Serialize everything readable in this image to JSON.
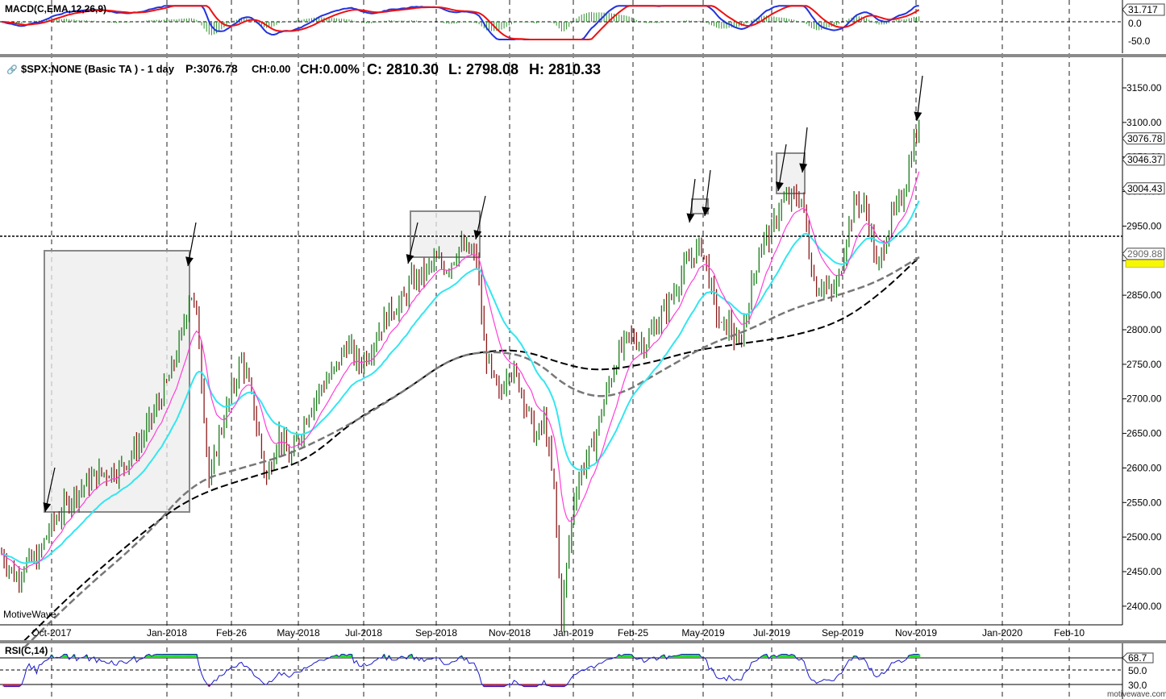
{
  "macd_panel": {
    "label": "MACD(C,EMA,12,26,9)",
    "axis_labels": [
      "31.717",
      "0.0",
      "-50.0"
    ]
  },
  "price_panel": {
    "title": "$SPX:NONE (Basic TA ) - 1 day",
    "readout_p": "P:3076.78",
    "readout_ch": "CH:0.00",
    "readout_chpct": "CH:0.00%",
    "readout_c": "C: 2810.30",
    "readout_l": "L: 2798.08",
    "readout_h": "H: 2810.33",
    "watermark": "MotiveWave"
  },
  "rsi_panel": {
    "label": "RSI(C,14)",
    "axis_labels": [
      "68.7",
      "50.0",
      "30.0"
    ]
  },
  "footer_brand": "motivewave.com",
  "colors": {
    "up": "#1a7a1a",
    "down": "#8b1a1a",
    "ma_fast": "#ff3fd8",
    "ma_mid": "#33e6f0",
    "ma_slow_gray": "#777777",
    "ma_slow_black": "#000000",
    "macd_line": "#2233dd",
    "signal_line": "#ee1111",
    "rsi_line": "#1a1acc"
  },
  "chart_data": {
    "type": "line",
    "title": "$SPX:NONE (Basic TA ) - 1 day",
    "x_tick_labels": [
      "Oct-2017",
      "Jan-2018",
      "Feb-26",
      "May-2018",
      "Jul-2018",
      "Sep-2018",
      "Nov-2018",
      "Jan-2019",
      "Feb-25",
      "May-2019",
      "Jul-2019",
      "Sep-2019",
      "Nov-2019",
      "Jan-2020",
      "Feb-10"
    ],
    "y_tick_labels": [
      "3150.00",
      "3100.00",
      "3050.00",
      "3000.00",
      "2950.00",
      "2900.00",
      "2850.00",
      "2800.00",
      "2750.00",
      "2700.00",
      "2650.00",
      "2600.00",
      "2550.00",
      "2500.00",
      "2450.00",
      "2400.00"
    ],
    "ylim": [
      2350,
      3185
    ],
    "price_tags": [
      "3076.78",
      "3046.37",
      "3004.43",
      "2909.88"
    ],
    "horizontal_line_level": 2900,
    "series": [
      {
        "values": [
          [
            "Sep-2017",
            2460
          ],
          [
            "Oct-2017",
            2505
          ],
          [
            "Nov-2017",
            2580
          ],
          [
            "Dec-2017",
            2660
          ],
          [
            "Jan-2018",
            2800
          ],
          [
            "Jan-29-2018",
            2865
          ],
          [
            "Feb-2018",
            2620
          ],
          [
            "Feb-26",
            2760
          ],
          [
            "Mar-2018",
            2620
          ],
          [
            "Apr-2018",
            2640
          ],
          [
            "May-2018",
            2700
          ],
          [
            "Jun-2018",
            2740
          ],
          [
            "Jul-2018",
            2790
          ],
          [
            "Aug-2018",
            2870
          ],
          [
            "Sep-2018",
            2930
          ],
          [
            "Oct-2018",
            2770
          ],
          [
            "Nov-2018",
            2710
          ],
          [
            "Dec-2018",
            2500
          ],
          [
            "Dec-24-2018",
            2360
          ],
          [
            "Jan-2019",
            2530
          ],
          [
            "Feb-2019",
            2700
          ],
          [
            "Feb-25",
            2790
          ],
          [
            "Mar-2019",
            2820
          ],
          [
            "Apr-2019",
            2940
          ],
          [
            "May-2019",
            2900
          ],
          [
            "Jun-2019",
            2820
          ],
          [
            "Jul-2019",
            2990
          ],
          [
            "Aug-2019",
            2880
          ],
          [
            "Sep-2019",
            2980
          ],
          [
            "Oct-2019",
            2960
          ],
          [
            "Nov-2019",
            3076.78
          ]
        ]
      }
    ],
    "macd": {
      "range": [
        -50,
        31.717
      ]
    },
    "rsi": {
      "range": [
        30,
        68.7
      ],
      "last": 68.7
    }
  }
}
